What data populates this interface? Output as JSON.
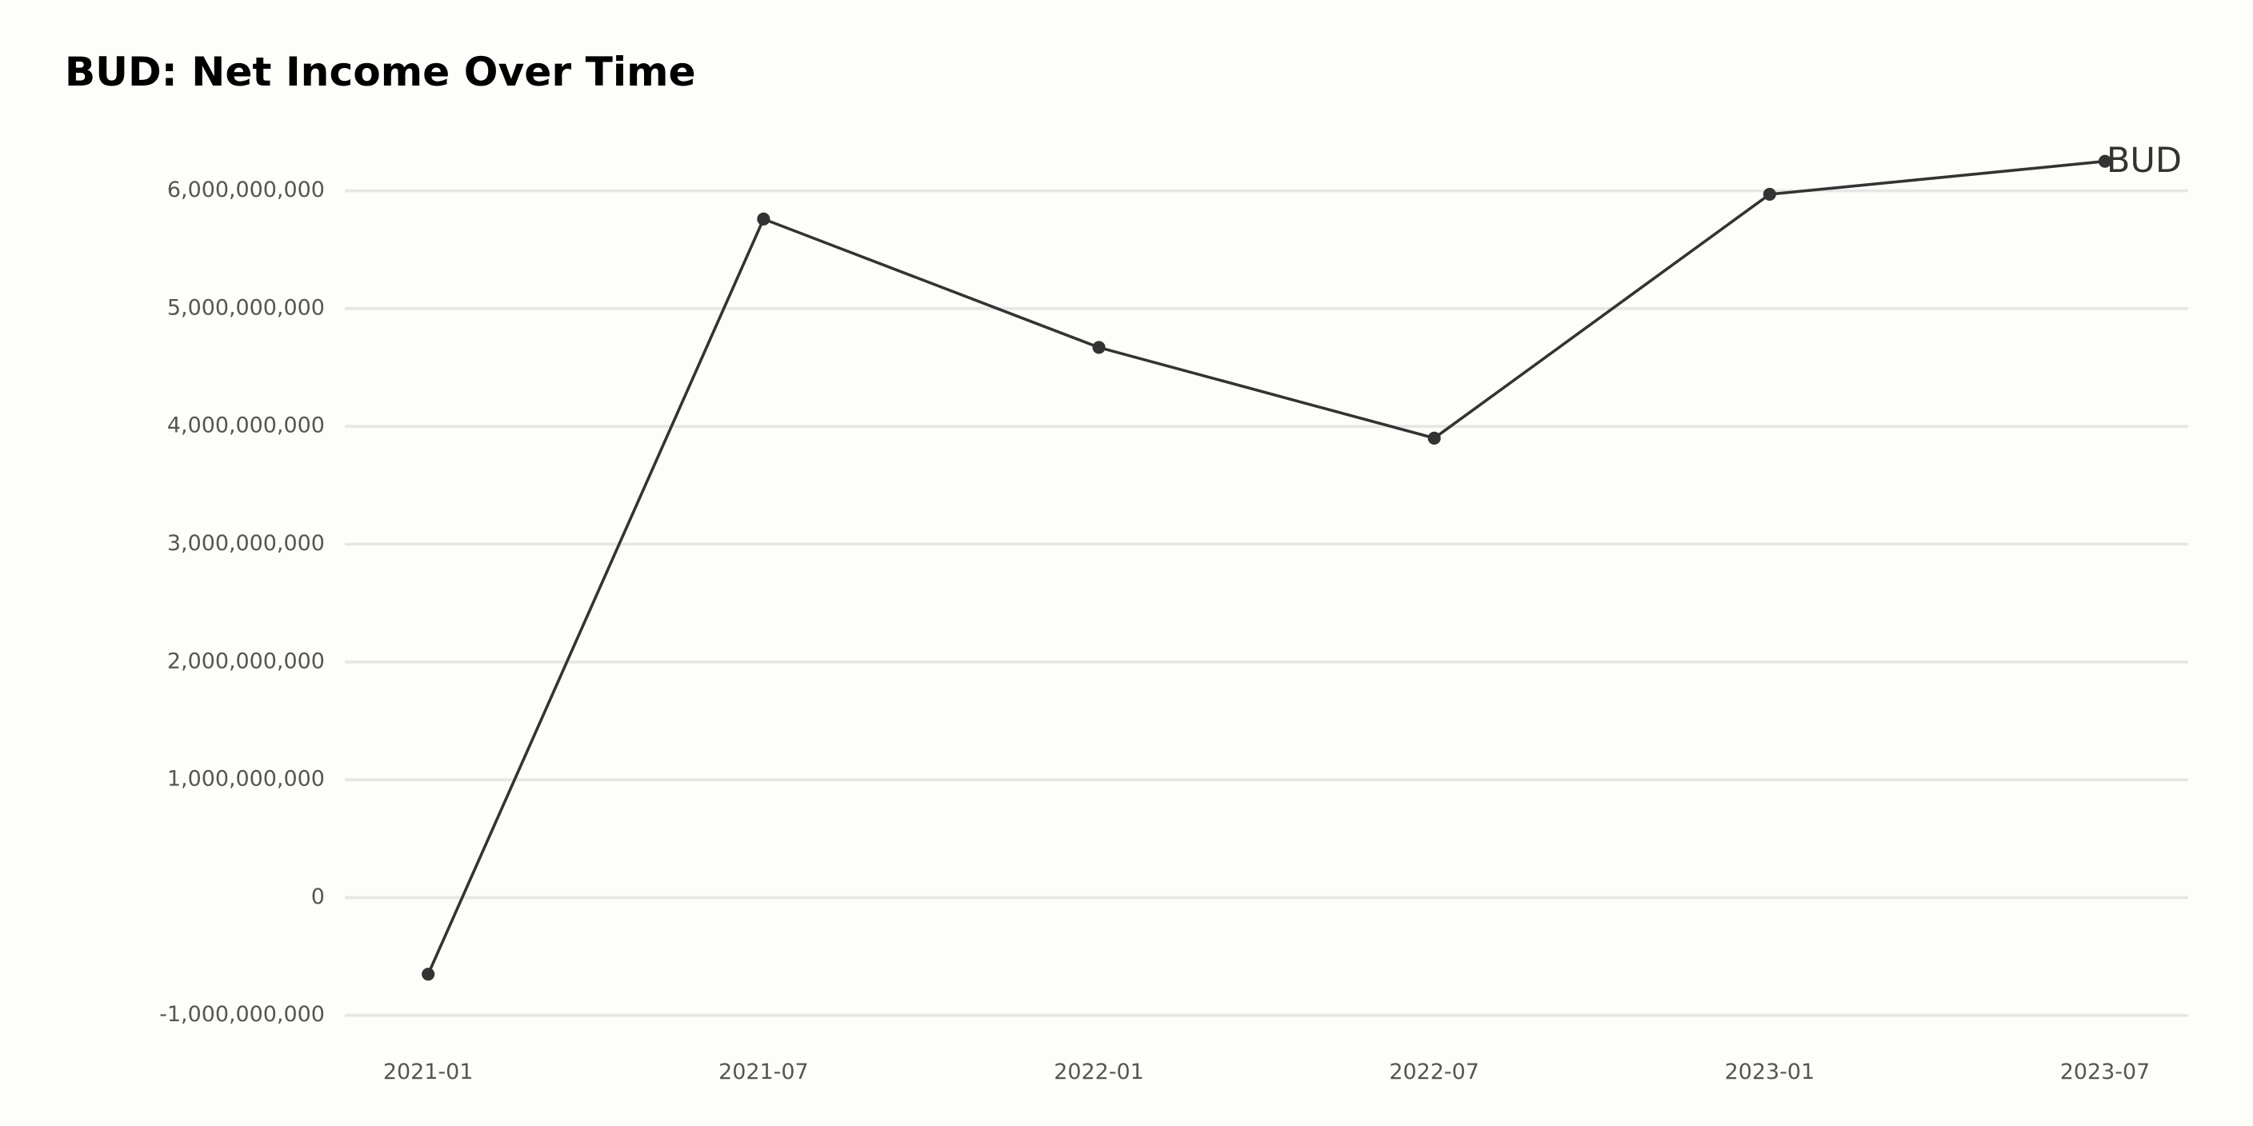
{
  "chart_data": {
    "type": "line",
    "title": "BUD: Net Income Over Time",
    "categories": [
      "2021-01",
      "2021-07",
      "2022-01",
      "2022-07",
      "2023-01",
      "2023-07"
    ],
    "series": [
      {
        "name": "BUD",
        "color": "#333333",
        "values": [
          -650000000,
          5760000000,
          4670000000,
          3900000000,
          5970000000,
          6250000000
        ]
      }
    ],
    "ylim": [
      -1000000000,
      6400000000
    ],
    "yticks": [
      {
        "value": -1000000000,
        "label": "-1,000,000,000"
      },
      0,
      {
        "value": 1000000000,
        "label": "1,000,000,000"
      },
      {
        "value": 2000000000,
        "label": "2,000,000,000"
      },
      {
        "value": 3000000000,
        "label": "3,000,000,000"
      },
      {
        "value": 4000000000,
        "label": "4,000,000,000"
      },
      {
        "value": 5000000000,
        "label": "5,000,000,000"
      },
      {
        "value": 6000000000,
        "label": "6,000,000,000"
      }
    ],
    "grid": true
  }
}
